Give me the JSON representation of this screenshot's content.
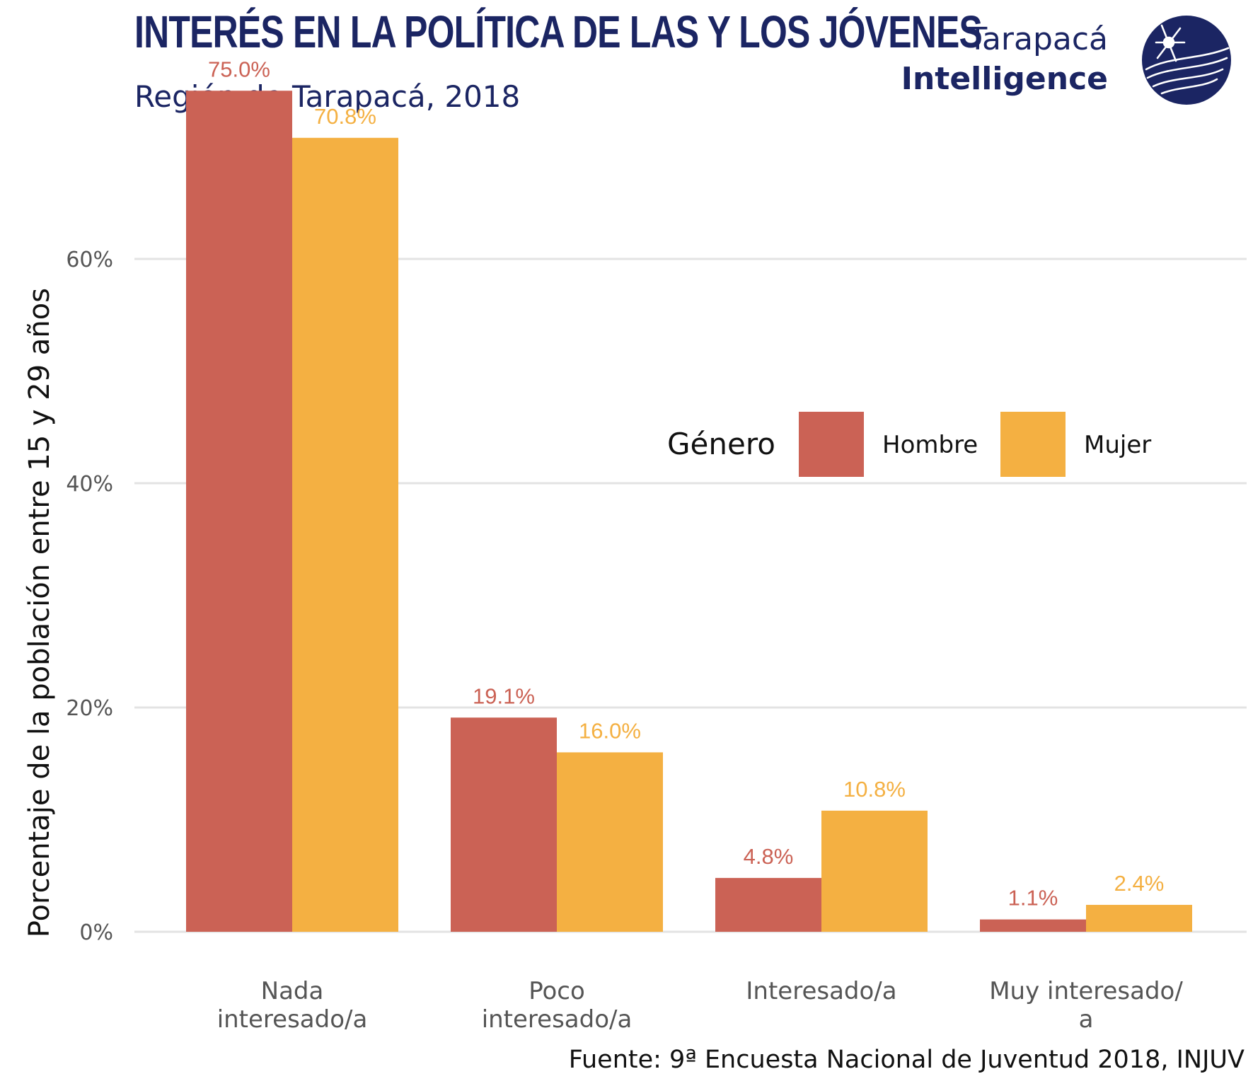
{
  "header": {
    "title": "INTERÉS EN LA POLÍTICA DE LAS Y LOS JÓVENES",
    "subtitle": "Región de Tarapacá, 2018"
  },
  "brand": {
    "line1": "Tarapacá",
    "line2": "Intelligence",
    "logo_icon": "tarapaca-intelligence-logo-icon",
    "color": "#1b2563"
  },
  "source": "Fuente: 9ª Encuesta Nacional de Juventud 2018, INJUV",
  "chart_data": {
    "type": "bar",
    "title": "INTERÉS EN LA POLÍTICA DE LAS Y LOS JÓVENES",
    "subtitle": "Región de Tarapacá, 2018",
    "ylabel": "Porcentaje de la población entre 15 y 29 años",
    "xlabel": "",
    "categories": [
      [
        "Nada",
        "interesado/a"
      ],
      [
        "Poco",
        "interesado/a"
      ],
      [
        "Interesado/a"
      ],
      [
        "Muy interesado/",
        "a"
      ]
    ],
    "series": [
      {
        "name": "Hombre",
        "color": "#cb6255",
        "values": [
          75.0,
          19.1,
          4.8,
          1.1
        ],
        "labels": [
          "75.0%",
          "19.1%",
          "4.8%",
          "1.1%"
        ]
      },
      {
        "name": "Mujer",
        "color": "#f4b042",
        "values": [
          70.8,
          16.0,
          10.8,
          2.4
        ],
        "labels": [
          "70.8%",
          "16.0%",
          "10.8%",
          "2.4%"
        ]
      }
    ],
    "ylim": [
      0,
      80
    ],
    "yticks": [
      0,
      20,
      40,
      60
    ],
    "ytick_labels": [
      "0%",
      "20%",
      "40%",
      "60%"
    ],
    "grid": true,
    "legend": {
      "title": "Género",
      "placement": "inside-right-top"
    }
  }
}
